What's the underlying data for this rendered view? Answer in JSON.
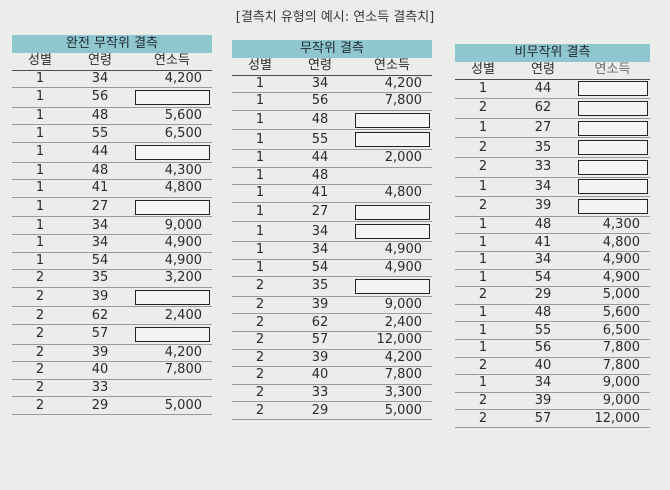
{
  "title": "[결측치 유형의 예시: 연소득 결측치]",
  "headers": {
    "sex": "성별",
    "age": "연령",
    "income": "연소득"
  },
  "tables": [
    {
      "name": "완전 무작위 결측",
      "rows": [
        [
          "1",
          "34",
          "4,200"
        ],
        [
          "1",
          "56",
          null
        ],
        [
          "1",
          "48",
          "5,600"
        ],
        [
          "1",
          "55",
          "6,500"
        ],
        [
          "1",
          "44",
          null
        ],
        [
          "1",
          "48",
          "4,300"
        ],
        [
          "1",
          "41",
          "4,800"
        ],
        [
          "1",
          "27",
          null
        ],
        [
          "1",
          "34",
          "9,000"
        ],
        [
          "1",
          "34",
          "4,900"
        ],
        [
          "1",
          "54",
          "4,900"
        ],
        [
          "2",
          "35",
          "3,200"
        ],
        [
          "2",
          "39",
          null
        ],
        [
          "2",
          "62",
          "2,400"
        ],
        [
          "2",
          "57",
          null
        ],
        [
          "2",
          "39",
          "4,200"
        ],
        [
          "2",
          "40",
          "7,800"
        ],
        [
          "2",
          "33",
          ""
        ],
        [
          "2",
          "29",
          "5,000"
        ]
      ]
    },
    {
      "name": "무작위 결측",
      "rows": [
        [
          "1",
          "34",
          "4,200"
        ],
        [
          "1",
          "56",
          "7,800"
        ],
        [
          "1",
          "48",
          null
        ],
        [
          "1",
          "55",
          null
        ],
        [
          "1",
          "44",
          "2,000"
        ],
        [
          "1",
          "48",
          ""
        ],
        [
          "1",
          "41",
          "4,800"
        ],
        [
          "1",
          "27",
          null
        ],
        [
          "1",
          "34",
          null
        ],
        [
          "1",
          "34",
          "4,900"
        ],
        [
          "1",
          "54",
          "4,900"
        ],
        [
          "2",
          "35",
          null
        ],
        [
          "2",
          "39",
          "9,000"
        ],
        [
          "2",
          "62",
          "2,400"
        ],
        [
          "2",
          "57",
          "12,000"
        ],
        [
          "2",
          "39",
          "4,200"
        ],
        [
          "2",
          "40",
          "7,800"
        ],
        [
          "2",
          "33",
          "3,300"
        ],
        [
          "2",
          "29",
          "5,000"
        ]
      ]
    },
    {
      "name": "비무작위 결측",
      "rows": [
        [
          "1",
          "44",
          null
        ],
        [
          "2",
          "62",
          null
        ],
        [
          "1",
          "27",
          null
        ],
        [
          "2",
          "35",
          null
        ],
        [
          "2",
          "33",
          null
        ],
        [
          "1",
          "34",
          null
        ],
        [
          "2",
          "39",
          null
        ],
        [
          "1",
          "48",
          "4,300"
        ],
        [
          "1",
          "41",
          "4,800"
        ],
        [
          "1",
          "34",
          "4,900"
        ],
        [
          "1",
          "54",
          "4,900"
        ],
        [
          "2",
          "29",
          "5,000"
        ],
        [
          "1",
          "48",
          "5,600"
        ],
        [
          "1",
          "55",
          "6,500"
        ],
        [
          "1",
          "56",
          "7,800"
        ],
        [
          "2",
          "40",
          "7,800"
        ],
        [
          "1",
          "34",
          "9,000"
        ],
        [
          "2",
          "39",
          "9,000"
        ],
        [
          "2",
          "57",
          "12,000"
        ]
      ]
    }
  ],
  "colors": {
    "header_band": "#8fc6cf",
    "background": "#ebedeb"
  }
}
